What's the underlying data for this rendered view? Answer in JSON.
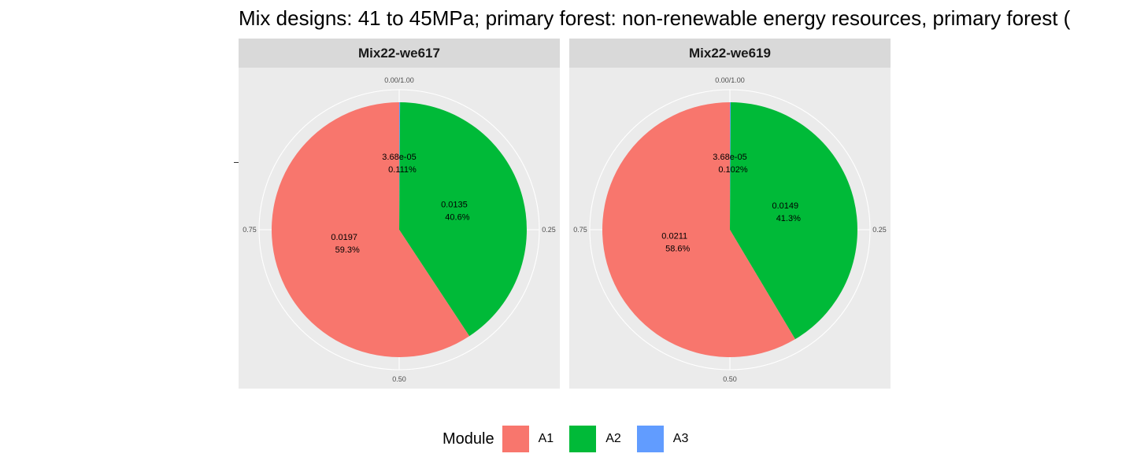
{
  "title": "Mix designs: 41 to 45MPa; primary forest: non-renewable energy resources, primary forest (",
  "legend": {
    "title": "Module",
    "items": [
      {
        "label": "A1",
        "color": "#F8766D"
      },
      {
        "label": "A2",
        "color": "#00BA38"
      },
      {
        "label": "A3",
        "color": "#619CFF"
      }
    ],
    "placement": "bottom"
  },
  "chart_data": [
    {
      "type": "pie",
      "facet": "Mix22-we617",
      "categories": [
        "A1",
        "A2",
        "A3"
      ],
      "values": [
        0.0197,
        0.0135,
        3.68e-05
      ],
      "labels": [
        {
          "value": "0.0197",
          "percent": "59.3%"
        },
        {
          "value": "0.0135",
          "percent": "40.6%"
        },
        {
          "value": "3.68e-05",
          "percent": "0.111%"
        }
      ],
      "theta_ticks": [
        "0.00/1.00",
        "0.25",
        "0.50",
        "0.75"
      ]
    },
    {
      "type": "pie",
      "facet": "Mix22-we619",
      "categories": [
        "A1",
        "A2",
        "A3"
      ],
      "values": [
        0.0211,
        0.0149,
        3.68e-05
      ],
      "labels": [
        {
          "value": "0.0211",
          "percent": "58.6%"
        },
        {
          "value": "0.0149",
          "percent": "41.3%"
        },
        {
          "value": "3.68e-05",
          "percent": "0.102%"
        }
      ],
      "theta_ticks": [
        "0.00/1.00",
        "0.25",
        "0.50",
        "0.75"
      ]
    }
  ]
}
